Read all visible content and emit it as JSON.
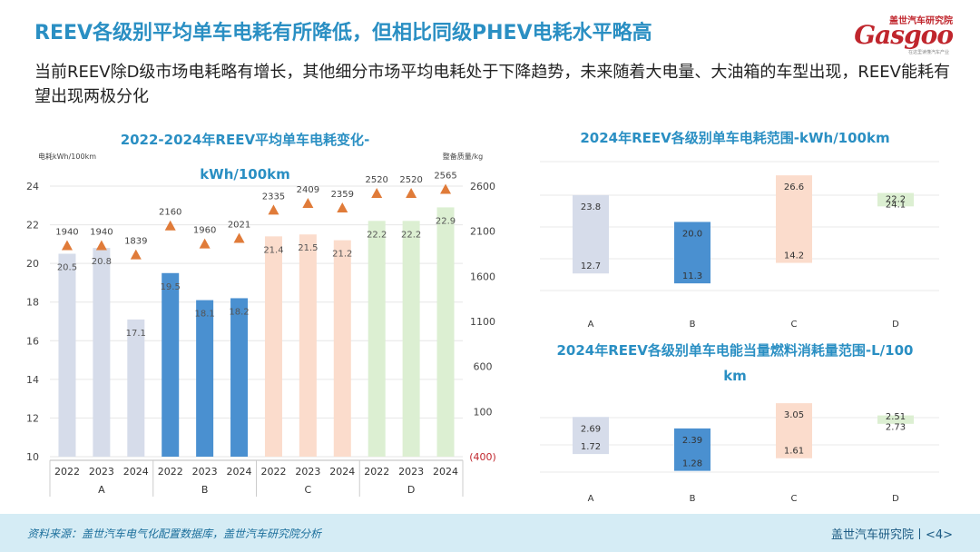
{
  "header": {
    "title": "REEV各级别平均单车电耗有所降低，但相比同级PHEV电耗水平略高",
    "subtitle": "当前REEV除D级市场电耗略有增长，其他细分市场平均电耗处于下降趋势，未来随着大电量、大油箱的车型出现，REEV能耗有望出现两极分化"
  },
  "logo": {
    "cn": "盖世汽车研究院",
    "en": "Gasgoo",
    "sub": "在这里读懂汽车产业"
  },
  "footer": {
    "source": "资料来源：盖世汽车电气化配置数据库，盖世汽车研究院分析",
    "brand": "盖世汽车研究院丨<4>"
  },
  "chart_data": [
    {
      "type": "bar",
      "title": "2022-2024年REEV平均单车电耗变化-kWh/100km",
      "ylabel": "电耗kWh/100km",
      "y2label": "整备质量/kg",
      "ylim": [
        10,
        24
      ],
      "y_ticks": [
        "10",
        "12",
        "14",
        "16",
        "18",
        "20",
        "22",
        "24"
      ],
      "y2_ticks": [
        "(400)",
        "100",
        "600",
        "1100",
        "1600",
        "2100",
        "2600"
      ],
      "y2lim": [
        -400,
        2600
      ],
      "groups": [
        "A",
        "B",
        "C",
        "D"
      ],
      "categories": [
        "2022",
        "2023",
        "2024",
        "2022",
        "2023",
        "2024",
        "2022",
        "2023",
        "2024",
        "2022",
        "2023",
        "2024"
      ],
      "group_colors": {
        "A": "#d6dcea",
        "B": "#4a90d0",
        "C": "#fbdccc",
        "D": "#dcefd2"
      },
      "series": [
        {
          "values": [
            20.5,
            20.8,
            17.1,
            19.5,
            18.1,
            18.2,
            21.4,
            21.5,
            21.2,
            22.2,
            22.2,
            22.9
          ],
          "labels": [
            "20.5",
            "20.8",
            "17.1",
            "19.5",
            "18.1",
            "18.2",
            "21.4",
            "21.5",
            "21.2",
            "22.2",
            "22.2",
            "22.9"
          ]
        },
        {
          "values": [
            1940,
            1940,
            1839,
            2160,
            1960,
            2021,
            2335,
            2409,
            2359,
            2520,
            2520,
            2565
          ],
          "labels": [
            "1940",
            "1940",
            "1839",
            "2160",
            "1960",
            "2021",
            "2335",
            "2409",
            "2359",
            "2520",
            "2520",
            "2565"
          ],
          "marker": "triangle",
          "color": "#e07b39"
        }
      ]
    },
    {
      "type": "range-bar",
      "title": "2024年REEV各级别单车电耗范围-kWh/100km",
      "categories": [
        "A",
        "B",
        "C",
        "D"
      ],
      "high": [
        23.8,
        20.0,
        26.6,
        24.1
      ],
      "low": [
        12.7,
        11.3,
        14.2,
        22.2
      ],
      "high_labels": [
        "23.8",
        "20.0",
        "26.6",
        "24.1"
      ],
      "low_labels": [
        "12.7",
        "11.3",
        "14.2",
        "22.2"
      ]
    },
    {
      "type": "range-bar",
      "title": "2024年REEV各级别单车电能当量燃料消耗量范围-L/100 km",
      "categories": [
        "A",
        "B",
        "C",
        "D"
      ],
      "high": [
        2.69,
        2.39,
        3.05,
        2.73
      ],
      "low": [
        1.72,
        1.28,
        1.61,
        2.51
      ],
      "high_labels": [
        "2.69",
        "2.39",
        "3.05",
        "2.73"
      ],
      "low_labels": [
        "1.72",
        "1.28",
        "1.61",
        "2.51"
      ]
    }
  ]
}
